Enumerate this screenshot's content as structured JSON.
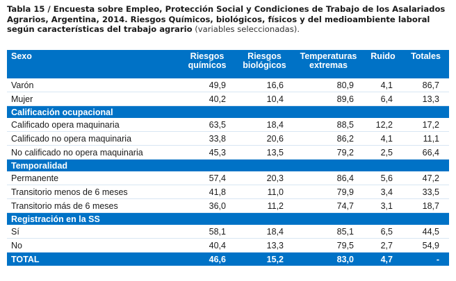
{
  "caption": {
    "bold": "Tabla 15 / Encuesta sobre Empleo, Protección Social y Condiciones de Trabajo de los Asalariados Agrarios, Argentina, 2014. Riesgos Químicos, biológicos, físicos y del medioambiente laboral según características del trabajo agrario",
    "light": " (variables seleccionadas)."
  },
  "header": {
    "first": "Sexo",
    "columns": [
      "Riesgos químicos",
      "Riesgos biológicos",
      "Temperaturas extremas",
      "Ruido",
      "Totales"
    ]
  },
  "groups": [
    {
      "rows": [
        {
          "label": "Varón",
          "values": [
            "49,9",
            "16,6",
            "80,9",
            "4,1",
            "86,7"
          ]
        },
        {
          "label": "Mujer",
          "values": [
            "40,2",
            "10,4",
            "89,6",
            "6,4",
            "13,3"
          ]
        }
      ]
    },
    {
      "title": "Calificación ocupacional",
      "rows": [
        {
          "label": "Calificado opera maquinaria",
          "values": [
            "63,5",
            "18,4",
            "88,5",
            "12,2",
            "17,2"
          ]
        },
        {
          "label": "Calificado no opera maquinaria",
          "values": [
            "33,8",
            "20,6",
            "86,2",
            "4,1",
            "11,1"
          ]
        },
        {
          "label": "No calificado no opera maquinaria",
          "values": [
            "45,3",
            "13,5",
            "79,2",
            "2,5",
            "66,4"
          ]
        }
      ]
    },
    {
      "title": "Temporalidad",
      "rows": [
        {
          "label": "Permanente",
          "values": [
            "57,4",
            "20,3",
            "86,4",
            "5,6",
            "47,2"
          ]
        },
        {
          "label": "Transitorio menos de 6 meses",
          "values": [
            "41,8",
            "11,0",
            "79,9",
            "3,4",
            "33,5"
          ]
        },
        {
          "label": "Transitorio más de 6 meses",
          "values": [
            "36,0",
            "11,2",
            "74,7",
            "3,1",
            "18,7"
          ]
        }
      ]
    },
    {
      "title": "Registración en la SS",
      "rows": [
        {
          "label": "Sí",
          "values": [
            "58,1",
            "18,4",
            "85,1",
            "6,5",
            "44,5"
          ]
        },
        {
          "label": "No",
          "values": [
            "40,4",
            "13,3",
            "79,5",
            "2,7",
            "54,9"
          ]
        }
      ]
    }
  ],
  "total": {
    "label": "TOTAL",
    "values": [
      "46,6",
      "15,2",
      "83,0",
      "4,7",
      "-"
    ]
  },
  "colors": {
    "header_blue": "#0072c6",
    "row_line": "#d8e6f3"
  }
}
